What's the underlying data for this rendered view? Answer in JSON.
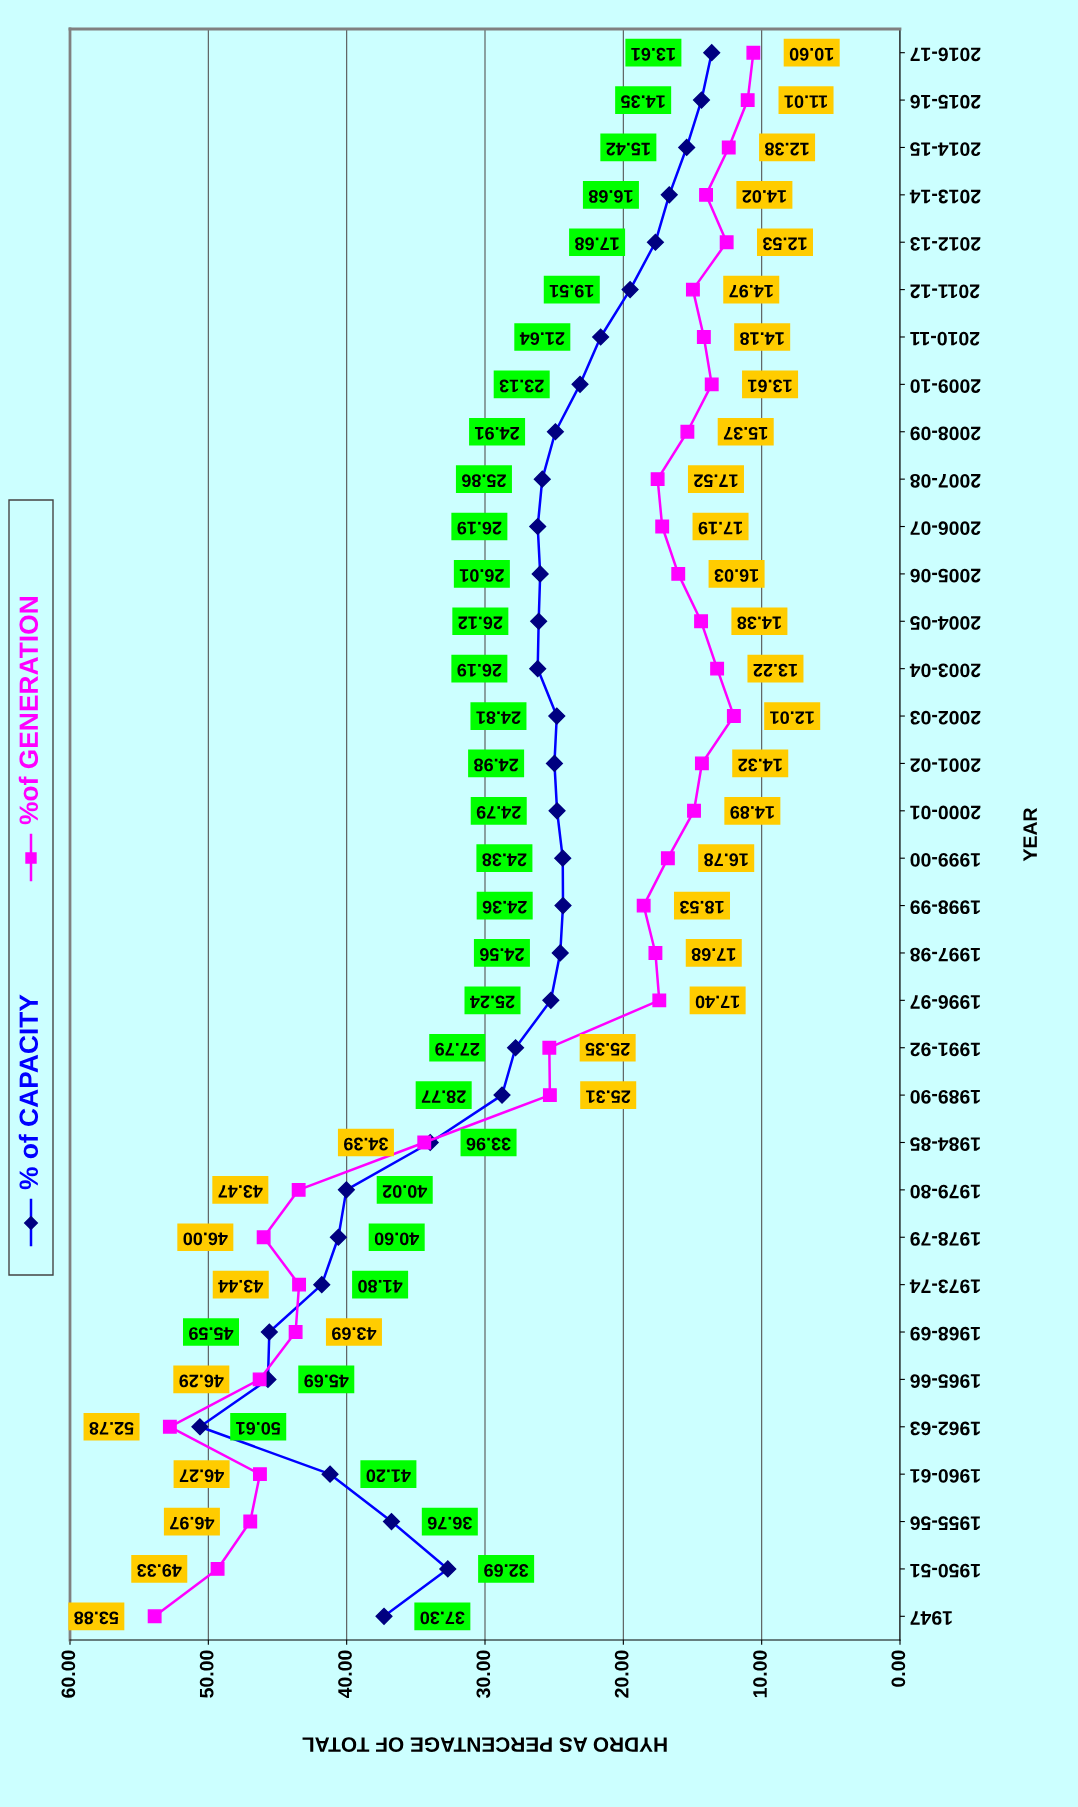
{
  "chart_data": {
    "type": "line",
    "orientation": "horizontal",
    "xlabel": "HYDRO AS PERCENTAGE OF TOTAL",
    "ylabel": "YEAR",
    "categories": [
      "2016-17",
      "2015-16",
      "2014-15",
      "2013-14",
      "2012-13",
      "2011-12",
      "2010-11",
      "2009-10",
      "2008-09",
      "2007-08",
      "2006-07",
      "2005-06",
      "2004-05",
      "2003-04",
      "2002-03",
      "2001-02",
      "2000-01",
      "1999-00",
      "1998-99",
      "1997-98",
      "1996-97",
      "1991-92",
      "1989-90",
      "1984-85",
      "1979-80",
      "1978-79",
      "1973-74",
      "1968-69",
      "1965-66",
      "1962-63",
      "1960-61",
      "1955-56",
      "1950-51",
      "1947"
    ],
    "series": [
      {
        "name": "% of CAPACITY",
        "color": "#0000ff",
        "marker": "diamond",
        "values": [
          13.61,
          14.35,
          15.42,
          16.68,
          17.68,
          19.51,
          21.64,
          23.13,
          24.91,
          25.86,
          26.19,
          26.01,
          26.12,
          26.19,
          24.81,
          24.98,
          24.79,
          24.38,
          24.36,
          24.56,
          25.24,
          27.79,
          28.77,
          33.96,
          40.02,
          40.6,
          41.8,
          45.59,
          45.69,
          50.61,
          41.2,
          36.76,
          32.69,
          37.3
        ],
        "value_labels": [
          "13.61",
          "14.35",
          "15.42",
          "16.68",
          "17.68",
          "19.51",
          "21.64",
          "23.13",
          "24.91",
          "25.86",
          "26.19",
          "26.01",
          "26.12",
          "26.19",
          "24.81",
          "24.98",
          "24.79",
          "24.38",
          "24.36",
          "24.56",
          "25.24",
          "27.79",
          "28.77",
          "33.96",
          "40.02",
          "40.60",
          "41.80",
          "45.59",
          "45.69",
          "50.61",
          "41.20",
          "36.76",
          "32.69",
          "37.30"
        ]
      },
      {
        "name": "%of GENERATION",
        "color": "#ff00ff",
        "marker": "square",
        "values": [
          10.6,
          11.01,
          12.38,
          14.02,
          12.53,
          14.97,
          14.18,
          13.61,
          15.37,
          17.52,
          17.19,
          16.03,
          14.38,
          13.22,
          12.01,
          14.32,
          14.89,
          16.78,
          18.53,
          17.68,
          17.4,
          25.35,
          25.31,
          34.39,
          43.47,
          46.0,
          43.44,
          43.69,
          46.29,
          52.78,
          46.27,
          46.97,
          49.33,
          53.88
        ],
        "value_labels": [
          "10.60",
          "11.01",
          "12.38",
          "14.02",
          "12.53",
          "14.97",
          "14.18",
          "13.61",
          "15.37",
          "17.52",
          "17.19",
          "16.03",
          "14.38",
          "13.22",
          "12.01",
          "14.32",
          "14.89",
          "16.78",
          "18.53",
          "17.68",
          "17.40",
          "25.35",
          "25.31",
          "34.39",
          "43.47",
          "46.00",
          "43.44",
          "43.69",
          "46.29",
          "52.78",
          "46.27",
          "46.97",
          "49.33",
          "53.88"
        ]
      }
    ],
    "xlim": [
      60,
      0
    ],
    "xticks": [
      {
        "value": 60,
        "label": "60.00"
      },
      {
        "value": 50,
        "label": "50.00"
      },
      {
        "value": 40,
        "label": "40.00"
      },
      {
        "value": 30,
        "label": "30.00"
      },
      {
        "value": 20,
        "label": "20.00"
      },
      {
        "value": 10,
        "label": "10.00"
      },
      {
        "value": 0,
        "label": "0.00"
      }
    ],
    "grid": "x",
    "legend": "left"
  }
}
